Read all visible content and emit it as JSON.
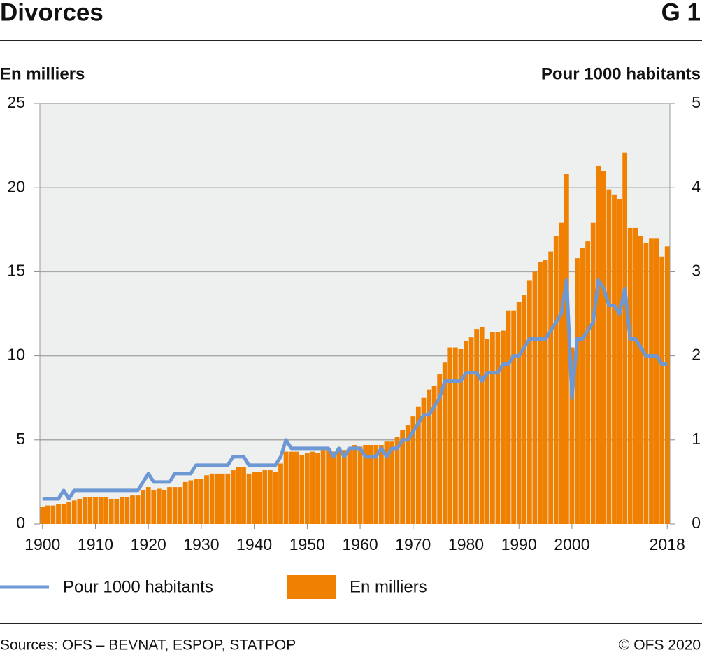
{
  "chart_data": {
    "type": "combo",
    "title": "Divorces",
    "chart_id": "G 1",
    "y_label": "En milliers",
    "y2_label": "Pour 1000 habitants",
    "source": "Sources: OFS – BEVNAT, ESPOP, STATPOP",
    "copyright": "© OFS 2020",
    "x": [
      1900,
      1901,
      1902,
      1903,
      1904,
      1905,
      1906,
      1907,
      1908,
      1909,
      1910,
      1911,
      1912,
      1913,
      1914,
      1915,
      1916,
      1917,
      1918,
      1919,
      1920,
      1921,
      1922,
      1923,
      1924,
      1925,
      1926,
      1927,
      1928,
      1929,
      1930,
      1931,
      1932,
      1933,
      1934,
      1935,
      1936,
      1937,
      1938,
      1939,
      1940,
      1941,
      1942,
      1943,
      1944,
      1945,
      1946,
      1947,
      1948,
      1949,
      1950,
      1951,
      1952,
      1953,
      1954,
      1955,
      1956,
      1957,
      1958,
      1959,
      1960,
      1961,
      1962,
      1963,
      1964,
      1965,
      1966,
      1967,
      1968,
      1969,
      1970,
      1971,
      1972,
      1973,
      1974,
      1975,
      1976,
      1977,
      1978,
      1979,
      1980,
      1981,
      1982,
      1983,
      1984,
      1985,
      1986,
      1987,
      1988,
      1989,
      1990,
      1991,
      1992,
      1993,
      1994,
      1995,
      1996,
      1997,
      1998,
      1999,
      2000,
      2001,
      2002,
      2003,
      2004,
      2005,
      2006,
      2007,
      2008,
      2009,
      2010,
      2011,
      2012,
      2013,
      2014,
      2015,
      2016,
      2017,
      2018
    ],
    "series": [
      {
        "name": "Pour 1000 habitants",
        "type": "line",
        "axis": "y2",
        "color": "#6e98d4",
        "values": [
          0.3,
          0.3,
          0.3,
          0.3,
          0.4,
          0.3,
          0.4,
          0.4,
          0.4,
          0.4,
          0.4,
          0.4,
          0.4,
          0.4,
          0.4,
          0.4,
          0.4,
          0.4,
          0.4,
          0.5,
          0.6,
          0.5,
          0.5,
          0.5,
          0.5,
          0.6,
          0.6,
          0.6,
          0.6,
          0.7,
          0.7,
          0.7,
          0.7,
          0.7,
          0.7,
          0.7,
          0.8,
          0.8,
          0.8,
          0.7,
          0.7,
          0.7,
          0.7,
          0.7,
          0.7,
          0.8,
          1.0,
          0.9,
          0.9,
          0.9,
          0.9,
          0.9,
          0.9,
          0.9,
          0.9,
          0.8,
          0.9,
          0.8,
          0.9,
          0.9,
          0.9,
          0.8,
          0.8,
          0.8,
          0.9,
          0.8,
          0.9,
          0.9,
          1.0,
          1.0,
          1.1,
          1.2,
          1.3,
          1.3,
          1.4,
          1.5,
          1.7,
          1.7,
          1.7,
          1.7,
          1.8,
          1.8,
          1.8,
          1.7,
          1.8,
          1.8,
          1.8,
          1.9,
          1.9,
          2.0,
          2.0,
          2.1,
          2.2,
          2.2,
          2.2,
          2.2,
          2.3,
          2.4,
          2.5,
          2.9,
          1.5,
          2.2,
          2.2,
          2.3,
          2.4,
          2.9,
          2.8,
          2.6,
          2.6,
          2.5,
          2.8,
          2.2,
          2.2,
          2.1,
          2.0,
          2.0,
          2.0,
          1.9,
          1.9
        ]
      },
      {
        "name": "En milliers",
        "type": "bar",
        "axis": "y",
        "color": "#ef8000",
        "values": [
          1.0,
          1.1,
          1.1,
          1.2,
          1.2,
          1.3,
          1.4,
          1.5,
          1.6,
          1.6,
          1.6,
          1.6,
          1.6,
          1.5,
          1.5,
          1.6,
          1.6,
          1.7,
          1.7,
          2.0,
          2.2,
          2.0,
          2.1,
          2.0,
          2.2,
          2.2,
          2.2,
          2.5,
          2.6,
          2.7,
          2.7,
          2.9,
          3.0,
          3.0,
          3.0,
          3.0,
          3.2,
          3.4,
          3.4,
          3.0,
          3.1,
          3.1,
          3.2,
          3.2,
          3.1,
          3.6,
          4.3,
          4.3,
          4.3,
          4.1,
          4.2,
          4.3,
          4.2,
          4.4,
          4.4,
          4.3,
          4.5,
          4.4,
          4.5,
          4.7,
          4.6,
          4.7,
          4.7,
          4.7,
          4.7,
          4.9,
          4.9,
          5.2,
          5.6,
          5.9,
          6.4,
          7.0,
          7.5,
          8.0,
          8.2,
          8.9,
          9.6,
          10.5,
          10.5,
          10.4,
          10.9,
          11.1,
          11.6,
          11.7,
          11.0,
          11.4,
          11.4,
          11.5,
          12.7,
          12.7,
          13.2,
          13.6,
          14.5,
          15.0,
          15.6,
          15.7,
          16.2,
          17.1,
          17.9,
          20.8,
          10.5,
          15.8,
          16.4,
          16.8,
          17.9,
          21.3,
          21.0,
          19.9,
          19.6,
          19.3,
          22.1,
          17.6,
          17.6,
          17.1,
          16.7,
          17.0,
          17.0,
          15.9,
          16.5
        ]
      }
    ],
    "xlim": [
      1899.5,
      2018.5
    ],
    "xticks": [
      1900,
      1910,
      1920,
      1930,
      1940,
      1950,
      1960,
      1970,
      1980,
      1990,
      2000,
      2018
    ],
    "ylim": [
      0,
      25
    ],
    "yticks": [
      0,
      5,
      10,
      15,
      20,
      25
    ],
    "y2lim": [
      0,
      5
    ],
    "y2ticks": [
      0,
      1,
      2,
      3,
      4,
      5
    ],
    "grid": true
  }
}
